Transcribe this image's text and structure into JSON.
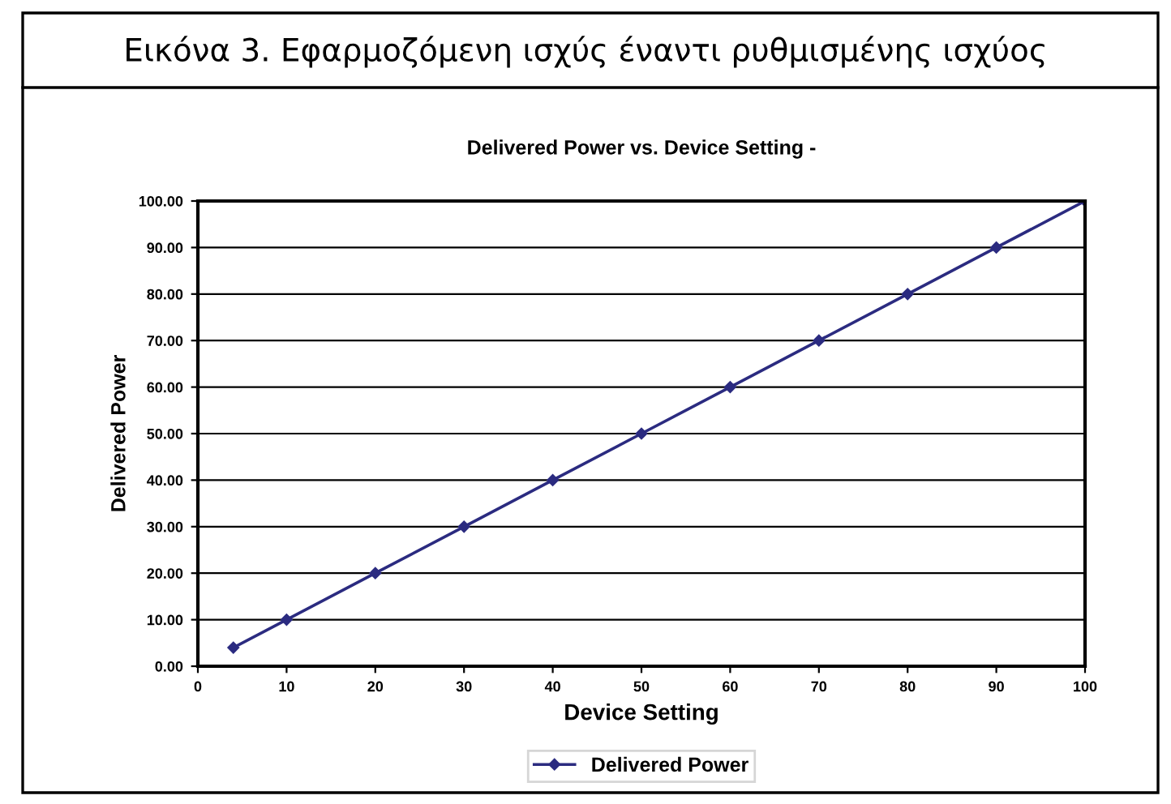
{
  "chart_data": {
    "type": "line",
    "title": "Εικόνα 3. Εφαρμοζόμενη ισχύς έναντι ρυθμισμένης ισχύος",
    "subtitle": "Delivered Power vs. Device Setting -",
    "xlabel": "Device Setting",
    "ylabel": "Delivered Power",
    "x": [
      4,
      10,
      20,
      30,
      40,
      50,
      60,
      70,
      80,
      90,
      100
    ],
    "series": [
      {
        "name": "Delivered Power",
        "color": "#2b2b80",
        "values": [
          4,
          10,
          20,
          30,
          40,
          50,
          60,
          70,
          80,
          90,
          100
        ]
      }
    ],
    "xlim": [
      0,
      100
    ],
    "xticks": [
      0,
      10,
      20,
      30,
      40,
      50,
      60,
      70,
      80,
      90,
      100
    ],
    "ylim": [
      0,
      100
    ],
    "yticks": [
      {
        "value": 0,
        "label": "0.00"
      },
      {
        "value": 10,
        "label": "10.00"
      },
      {
        "value": 20,
        "label": "20.00"
      },
      {
        "value": 30,
        "label": "30.00"
      },
      {
        "value": 40,
        "label": "40.00"
      },
      {
        "value": 50,
        "label": "50.00"
      },
      {
        "value": 60,
        "label": "60.00"
      },
      {
        "value": 70,
        "label": "70.00"
      },
      {
        "value": 80,
        "label": "80.00"
      },
      {
        "value": 90,
        "label": "90.00"
      },
      {
        "value": 100,
        "label": "100.00"
      }
    ],
    "grid": "y",
    "legend": "bottom",
    "marker": "diamond",
    "line_style": "solid"
  }
}
